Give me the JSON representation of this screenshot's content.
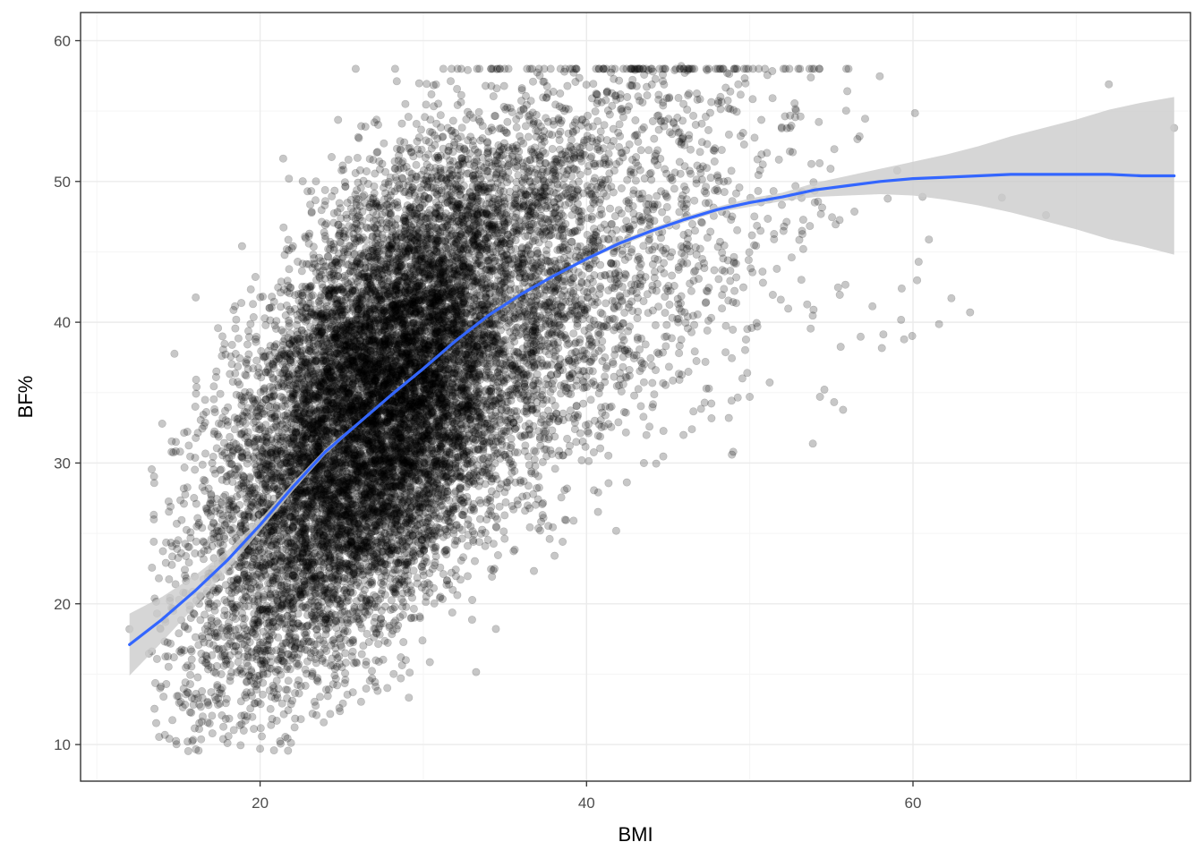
{
  "chart_data": {
    "type": "scatter",
    "title": "",
    "xlabel": "BMI",
    "ylabel": "BF%",
    "xlim": [
      9,
      77
    ],
    "ylim": [
      7.4,
      62
    ],
    "x_ticks": [
      20,
      40,
      60
    ],
    "y_ticks": [
      10,
      20,
      30,
      40,
      50,
      60
    ],
    "grid": true,
    "legend": "none",
    "colors": {
      "points": "#000000",
      "point_alpha": 0.22,
      "smooth_line": "#3366FF",
      "confidence_band": "#cccccc",
      "grid_major": "#ebebeb",
      "grid_minor": "#f5f5f5",
      "panel_border": "#333333"
    },
    "scatter_summary": {
      "n_points_approx": 14000,
      "description_of_cloud": [
        {
          "bmi_center": 22,
          "bf_mean": 24,
          "bf_sd": 8
        },
        {
          "bmi_center": 26,
          "bf_mean": 30,
          "bf_sd": 8
        },
        {
          "bmi_center": 30,
          "bf_mean": 35,
          "bf_sd": 8
        },
        {
          "bmi_center": 35,
          "bf_mean": 40,
          "bf_sd": 7
        },
        {
          "bmi_center": 40,
          "bf_mean": 44,
          "bf_sd": 6
        },
        {
          "bmi_center": 50,
          "bf_mean": 48,
          "bf_sd": 5
        },
        {
          "bmi_center": 60,
          "bf_mean": 49,
          "bf_sd": 5
        }
      ],
      "notable_points": [
        {
          "x": 12,
          "y": 18.2
        },
        {
          "x": 45.8,
          "y": 58.2
        },
        {
          "x": 72,
          "y": 56.9
        },
        {
          "x": 76,
          "y": 53.8
        },
        {
          "x": 20,
          "y": 9.7
        },
        {
          "x": 18,
          "y": 10.1
        },
        {
          "x": 50,
          "y": 34.7
        },
        {
          "x": 63.5,
          "y": 40.7
        }
      ]
    },
    "smooth": {
      "name": "",
      "x": [
        12,
        14,
        16,
        18,
        20,
        22,
        24,
        26,
        28,
        30,
        32,
        34,
        36,
        38,
        40,
        42,
        44,
        46,
        48,
        50,
        52,
        54,
        56,
        58,
        60,
        62,
        64,
        66,
        68,
        70,
        72,
        74,
        76
      ],
      "y": [
        17.1,
        18.9,
        20.9,
        23.1,
        25.6,
        28.3,
        30.8,
        32.8,
        34.8,
        36.7,
        38.7,
        40.5,
        42.0,
        43.3,
        44.5,
        45.6,
        46.5,
        47.3,
        48.0,
        48.5,
        48.9,
        49.4,
        49.7,
        50.0,
        50.2,
        50.3,
        50.4,
        50.5,
        50.5,
        50.5,
        50.5,
        50.4,
        50.4
      ],
      "ci_lower": [
        14.9,
        17.3,
        19.8,
        22.4,
        25.2,
        28.0,
        30.6,
        32.7,
        34.7,
        36.6,
        38.6,
        40.4,
        41.9,
        43.2,
        44.4,
        45.4,
        46.3,
        47.1,
        47.8,
        48.2,
        48.6,
        48.9,
        49.0,
        49.1,
        49.0,
        48.7,
        48.3,
        47.8,
        47.2,
        46.6,
        45.9,
        45.4,
        44.8
      ],
      "ci_upper": [
        19.3,
        20.5,
        22.0,
        23.8,
        26.0,
        28.6,
        31.0,
        32.9,
        34.9,
        36.8,
        38.8,
        40.6,
        42.1,
        43.4,
        44.6,
        45.8,
        46.7,
        47.5,
        48.2,
        48.8,
        49.2,
        49.9,
        50.4,
        50.9,
        51.4,
        51.9,
        52.5,
        53.2,
        53.8,
        54.4,
        55.1,
        55.6,
        56.0
      ]
    }
  }
}
